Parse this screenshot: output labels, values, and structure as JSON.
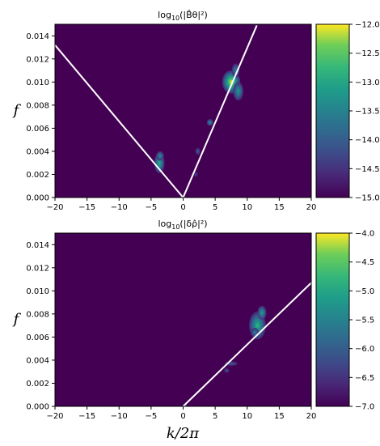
{
  "chart_data": [
    {
      "type": "heatmap",
      "title_base": "log",
      "title_sub": "10",
      "title_arg": "(|B̂θ|²)",
      "xlabel": "",
      "ylabel": "f",
      "xlim": [
        -20,
        20
      ],
      "ylim": [
        0,
        0.015
      ],
      "xticks": [
        "−20",
        "−15",
        "−10",
        "−5",
        "0",
        "5",
        "10",
        "15",
        "20"
      ],
      "yticks": [
        "0.000",
        "0.002",
        "0.004",
        "0.006",
        "0.008",
        "0.010",
        "0.012",
        "0.014"
      ],
      "colorbar": {
        "range": [
          -15.0,
          -12.0
        ],
        "ticks": [
          "−12.0",
          "−12.5",
          "−13.0",
          "−13.5",
          "−14.0",
          "−14.5",
          "−15.0"
        ]
      },
      "lines": [
        {
          "x": [
            -20,
            0
          ],
          "y": [
            0.0132,
            0
          ]
        },
        {
          "x": [
            0,
            11.5
          ],
          "y": [
            0,
            0.0149
          ]
        }
      ],
      "blobs": [
        {
          "x": 7.5,
          "y": 0.01,
          "sx": 1.4,
          "sy": 0.001,
          "level": 0.95
        },
        {
          "x": 8.6,
          "y": 0.0092,
          "sx": 0.8,
          "sy": 0.0008,
          "level": 0.55
        },
        {
          "x": 8.2,
          "y": 0.011,
          "sx": 0.6,
          "sy": 0.0006,
          "level": 0.45
        },
        {
          "x": -3.7,
          "y": 0.003,
          "sx": 0.8,
          "sy": 0.0009,
          "level": 0.65
        },
        {
          "x": -3.6,
          "y": 0.0036,
          "sx": 0.6,
          "sy": 0.0004,
          "level": 0.5
        },
        {
          "x": 4.2,
          "y": 0.0065,
          "sx": 0.5,
          "sy": 0.0003,
          "level": 0.5
        },
        {
          "x": 2.3,
          "y": 0.004,
          "sx": 0.4,
          "sy": 0.0003,
          "level": 0.25
        },
        {
          "x": 2.0,
          "y": 0.002,
          "sx": 0.3,
          "sy": 0.0002,
          "level": 0.15
        }
      ]
    },
    {
      "type": "heatmap",
      "title_base": "log",
      "title_sub": "10",
      "title_arg": "(|δρ̂|²)",
      "xlabel": "k/2π",
      "ylabel": "f",
      "xlim": [
        -20,
        20
      ],
      "ylim": [
        0,
        0.015
      ],
      "xticks": [
        "−20",
        "−15",
        "−10",
        "−5",
        "0",
        "5",
        "10",
        "15",
        "20"
      ],
      "yticks": [
        "0.000",
        "0.002",
        "0.004",
        "0.006",
        "0.008",
        "0.010",
        "0.012",
        "0.014"
      ],
      "colorbar": {
        "range": [
          -7.0,
          -4.0
        ],
        "ticks": [
          "−4.0",
          "−4.5",
          "−5.0",
          "−5.5",
          "−6.0",
          "−6.5",
          "−7.0"
        ]
      },
      "lines": [
        {
          "x": [
            0,
            20
          ],
          "y": [
            0,
            0.0107
          ]
        }
      ],
      "blobs": [
        {
          "x": 11.6,
          "y": 0.007,
          "sx": 1.3,
          "sy": 0.0012,
          "level": 0.7
        },
        {
          "x": 12.3,
          "y": 0.0081,
          "sx": 0.7,
          "sy": 0.0006,
          "level": 0.6
        },
        {
          "x": 11.2,
          "y": 0.0064,
          "sx": 0.6,
          "sy": 0.0004,
          "level": 0.45
        },
        {
          "x": 7.5,
          "y": 0.0037,
          "sx": 1.0,
          "sy": 0.0002,
          "level": 0.25
        },
        {
          "x": 6.8,
          "y": 0.0031,
          "sx": 0.4,
          "sy": 0.0002,
          "level": 0.2
        },
        {
          "x": 0.3,
          "y": 0.0001,
          "sx": 0.3,
          "sy": 0.0001,
          "level": 0.3
        }
      ]
    }
  ]
}
